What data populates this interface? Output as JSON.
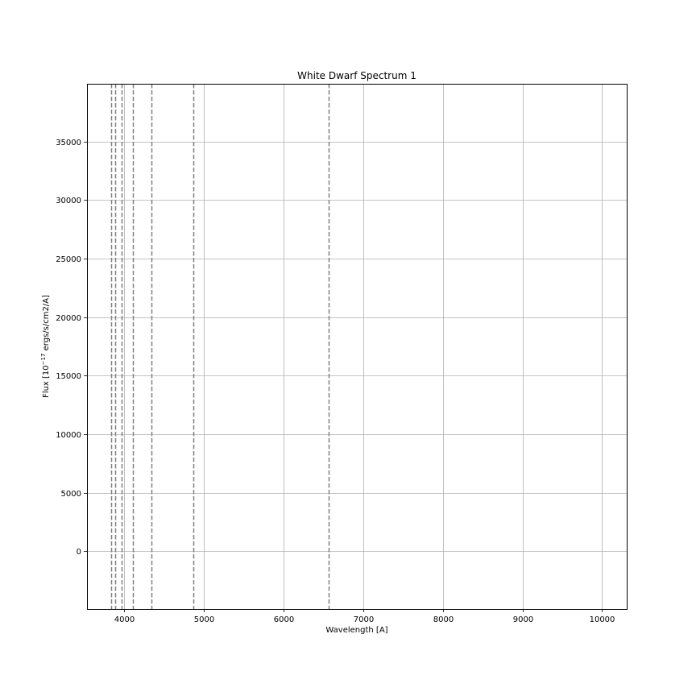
{
  "chart_data": {
    "type": "line",
    "title": "White Dwarf Spectrum 1",
    "xlabel": "Wavelength [A]",
    "ylabel": {
      "prefix": "Flux [10",
      "exponent": "−17",
      "suffix": " ergs/s/cm2/A]"
    },
    "xlim": [
      3530,
      10310
    ],
    "ylim": [
      -4950,
      39950
    ],
    "xticks": [
      {
        "value": 4000,
        "label": "4000"
      },
      {
        "value": 5000,
        "label": "5000"
      },
      {
        "value": 6000,
        "label": "6000"
      },
      {
        "value": 7000,
        "label": "7000"
      },
      {
        "value": 8000,
        "label": "8000"
      },
      {
        "value": 9000,
        "label": "9000"
      },
      {
        "value": 10000,
        "label": "10000"
      }
    ],
    "yticks": [
      {
        "value": 0,
        "label": "0"
      },
      {
        "value": 5000,
        "label": "5000"
      },
      {
        "value": 10000,
        "label": "10000"
      },
      {
        "value": 15000,
        "label": "15000"
      },
      {
        "value": 20000,
        "label": "20000"
      },
      {
        "value": 25000,
        "label": "25000"
      },
      {
        "value": 30000,
        "label": "30000"
      },
      {
        "value": 35000,
        "label": "35000"
      }
    ],
    "grid": true,
    "reference_lines": {
      "orientation": "vertical",
      "style": "dashed",
      "color": "#808080",
      "x": [
        3835,
        3889,
        3970,
        4102,
        4340,
        4861,
        6563
      ]
    },
    "series": []
  }
}
